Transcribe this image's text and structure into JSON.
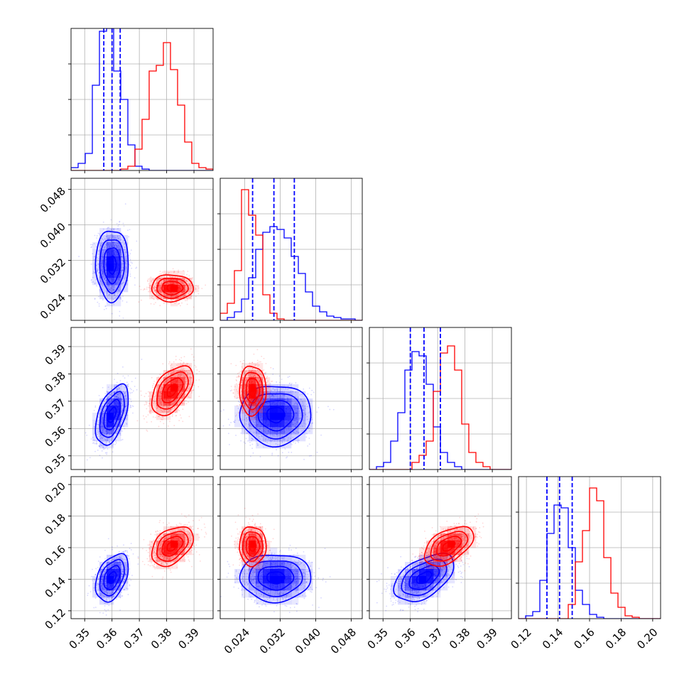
{
  "chart_data": {
    "type": "corner",
    "grid": true,
    "colors": {
      "sample_a": "#0000ff",
      "sample_b": "#ff0000"
    },
    "parameters": [
      {
        "range": [
          0.345,
          0.397
        ],
        "ticks": [
          "0.35",
          "0.36",
          "0.37",
          "0.38",
          "0.39"
        ],
        "tick_values": [
          0.35,
          0.36,
          0.37,
          0.38,
          0.39
        ]
      },
      {
        "range": [
          0.0185,
          0.0505
        ],
        "ticks": [
          "0.024",
          "0.032",
          "0.040",
          "0.048"
        ],
        "tick_values": [
          0.024,
          0.032,
          0.04,
          0.048
        ]
      },
      {
        "range": [
          0.345,
          0.397
        ],
        "ticks": [
          "0.35",
          "0.36",
          "0.37",
          "0.38",
          "0.39"
        ],
        "tick_values": [
          0.35,
          0.36,
          0.37,
          0.38,
          0.39
        ]
      },
      {
        "range": [
          0.115,
          0.205
        ],
        "ticks": [
          "0.12",
          "0.14",
          "0.16",
          "0.18",
          "0.20"
        ],
        "tick_values": [
          0.12,
          0.14,
          0.16,
          0.18,
          0.2
        ]
      }
    ],
    "samples": [
      {
        "color": "#0000ff",
        "mean": [
          0.36,
          0.031,
          0.365,
          0.141
        ],
        "sd": [
          0.003,
          0.004,
          0.0055,
          0.0075
        ],
        "quantiles": [
          [
            0.357,
            0.36,
            0.363
          ],
          [
            0.0258,
            0.0306,
            0.0352
          ],
          [
            0.36,
            0.365,
            0.371
          ],
          [
            0.133,
            0.141,
            0.149
          ]
        ]
      },
      {
        "color": "#ff0000",
        "mean": [
          0.382,
          0.0258,
          0.374,
          0.161
        ],
        "sd": [
          0.0038,
          0.0015,
          0.0045,
          0.0062
        ],
        "quantiles": []
      }
    ],
    "histograms": [
      {
        "bins": 20,
        "series": [
          {
            "color": "#0000ff",
            "counts": [
              0.02,
              0.05,
              0.12,
              0.6,
              0.98,
              1.0,
              0.7,
              0.5,
              0.18,
              0.03,
              0.01,
              0,
              0,
              0,
              0,
              0,
              0,
              0,
              0,
              0
            ]
          },
          {
            "color": "#ff0000",
            "counts": [
              0,
              0,
              0,
              0,
              0,
              0,
              0,
              0.01,
              0.03,
              0.15,
              0.36,
              0.7,
              0.74,
              0.9,
              0.71,
              0.46,
              0.2,
              0.05,
              0.02,
              0.01
            ]
          }
        ]
      },
      {
        "bins": 20,
        "series": [
          {
            "color": "#0000ff",
            "counts": [
              0,
              0.02,
              0.06,
              0.15,
              0.3,
              0.5,
              0.62,
              0.66,
              0.64,
              0.58,
              0.45,
              0.33,
              0.2,
              0.1,
              0.06,
              0.03,
              0.02,
              0.01,
              0.01,
              0
            ]
          },
          {
            "color": "#ff0000",
            "counts": [
              0.05,
              0.12,
              0.35,
              0.92,
              0.74,
              0.6,
              0.18,
              0.05,
              0.01,
              0,
              0,
              0,
              0,
              0,
              0,
              0,
              0,
              0,
              0,
              0
            ]
          }
        ]
      },
      {
        "bins": 20,
        "series": [
          {
            "color": "#0000ff",
            "counts": [
              0,
              0.02,
              0.05,
              0.2,
              0.4,
              0.7,
              0.83,
              0.8,
              0.6,
              0.3,
              0.12,
              0.05,
              0.02,
              0,
              0,
              0,
              0,
              0,
              0,
              0
            ]
          },
          {
            "color": "#ff0000",
            "counts": [
              0,
              0,
              0,
              0,
              0,
              0,
              0.05,
              0.1,
              0.2,
              0.55,
              0.82,
              0.87,
              0.7,
              0.32,
              0.12,
              0.05,
              0.02,
              0,
              0,
              0
            ]
          }
        ]
      },
      {
        "bins": 20,
        "series": [
          {
            "color": "#0000ff",
            "counts": [
              0,
              0.02,
              0.05,
              0.27,
              0.6,
              0.8,
              0.78,
              0.5,
              0.2,
              0.1,
              0.03,
              0.01,
              0,
              0,
              0,
              0,
              0,
              0,
              0,
              0
            ]
          },
          {
            "color": "#ff0000",
            "counts": [
              0,
              0,
              0,
              0,
              0,
              0,
              0,
              0.1,
              0.4,
              0.62,
              0.92,
              0.83,
              0.43,
              0.18,
              0.08,
              0.02,
              0.01,
              0,
              0,
              0
            ]
          }
        ]
      }
    ]
  }
}
